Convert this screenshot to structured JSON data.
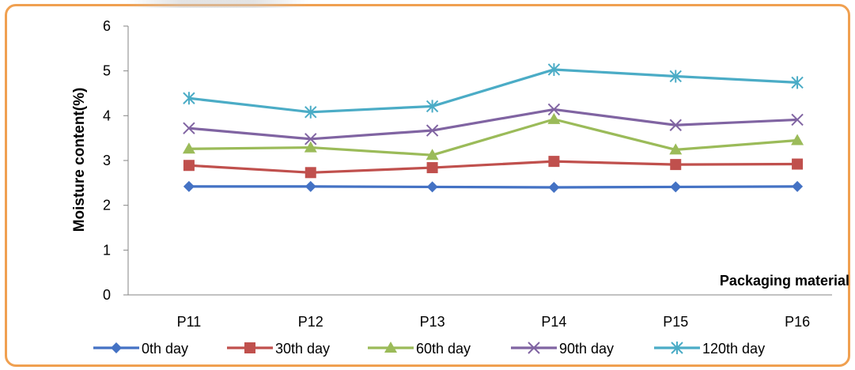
{
  "chart_data": {
    "type": "line",
    "categories": [
      "P11",
      "P12",
      "P13",
      "P14",
      "P15",
      "P16"
    ],
    "title": "",
    "xlabel": "Packaging material",
    "ylabel": "Moisture content(%)",
    "ylim": [
      0,
      6
    ],
    "yticks": [
      "0",
      "1",
      "2",
      "3",
      "4",
      "5",
      "6"
    ],
    "grid": false,
    "legend_position": "bottom",
    "series": [
      {
        "name": "0th day",
        "color": "#4472c4",
        "marker": "diamond",
        "values": [
          2.42,
          2.42,
          2.41,
          2.4,
          2.41,
          2.42
        ]
      },
      {
        "name": "30th day",
        "color": "#c0504d",
        "marker": "square",
        "values": [
          2.89,
          2.73,
          2.84,
          2.98,
          2.91,
          2.92
        ]
      },
      {
        "name": "60th day",
        "color": "#9bbb59",
        "marker": "triangle",
        "values": [
          3.26,
          3.29,
          3.12,
          3.92,
          3.24,
          3.45
        ]
      },
      {
        "name": "90th day",
        "color": "#8064a2",
        "marker": "x",
        "values": [
          3.72,
          3.48,
          3.67,
          4.14,
          3.79,
          3.91
        ]
      },
      {
        "name": "120th day",
        "color": "#4bacc6",
        "marker": "star",
        "values": [
          4.39,
          4.08,
          4.21,
          5.03,
          4.88,
          4.74
        ]
      }
    ]
  }
}
